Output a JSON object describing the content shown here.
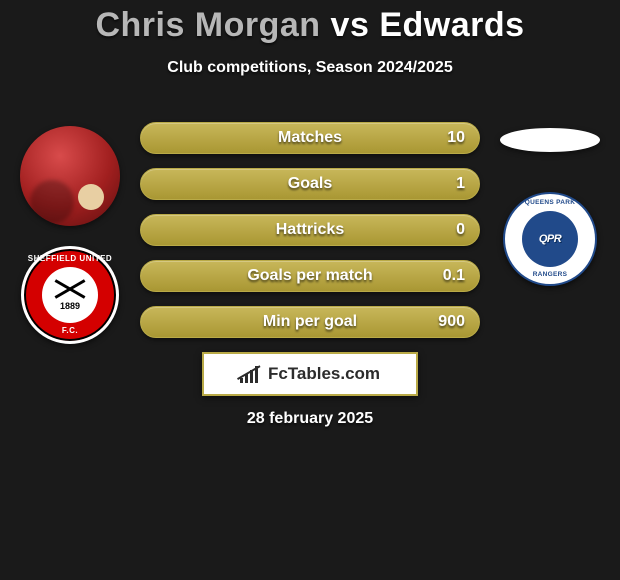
{
  "header": {
    "player1": "Chris Morgan",
    "vs": "vs",
    "player2": "Edwards",
    "subtitle": "Club competitions, Season 2024/2025",
    "title_p1_color": "#b7b7b7",
    "title_p2_color": "#ffffff"
  },
  "stats": {
    "bar_gradient_top": "#c8b75a",
    "bar_gradient_bottom": "#a99733",
    "border_color": "#b9aa47",
    "rows": [
      {
        "label": "Matches",
        "value_right": "10"
      },
      {
        "label": "Goals",
        "value_right": "1"
      },
      {
        "label": "Hattricks",
        "value_right": "0"
      },
      {
        "label": "Goals per match",
        "value_right": "0.1"
      },
      {
        "label": "Min per goal",
        "value_right": "900"
      }
    ]
  },
  "left": {
    "club_arc_top": "SHEFFIELD UNITED",
    "club_arc_bottom": "F.C.",
    "year": "1889",
    "red": "#d40000"
  },
  "right": {
    "arc_top": "QUEENS PARK",
    "arc_bottom": "RANGERS",
    "inner": "QPR",
    "blue": "#214a8a"
  },
  "footer": {
    "brand": "FcTables.com",
    "date": "28 february 2025"
  }
}
